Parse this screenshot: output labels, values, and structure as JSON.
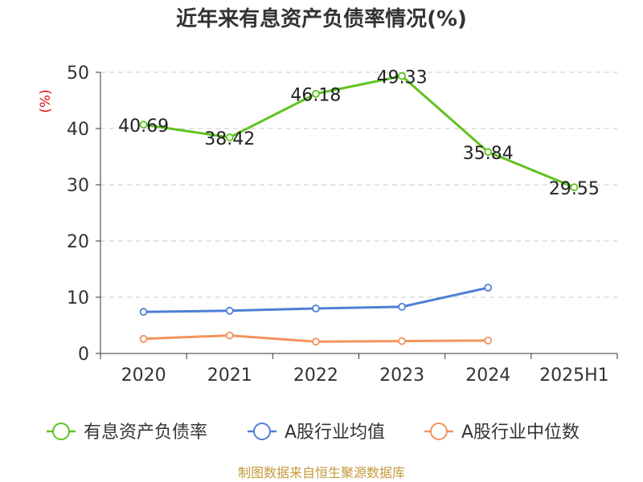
{
  "chart_data": {
    "type": "line",
    "title": "近年来有息资产负债率情况(%)",
    "ylabel": "(%)",
    "xlabel": "",
    "categories": [
      "2020",
      "2021",
      "2022",
      "2023",
      "2024",
      "2025H1"
    ],
    "ylim": [
      0,
      50
    ],
    "yticks": [
      0,
      10,
      20,
      30,
      40,
      50
    ],
    "grid": true,
    "legend_position": "bottom",
    "series": [
      {
        "name": "有息资产负债率",
        "color": "#5fc31f",
        "values": [
          40.69,
          38.42,
          46.18,
          49.33,
          35.84,
          29.55
        ],
        "labels": [
          "40.69",
          "38.42",
          "46.18",
          "49.33",
          "35.84",
          "29.55"
        ]
      },
      {
        "name": "A股行业均值",
        "color": "#4f7fd6",
        "values": [
          7.4,
          7.6,
          8.0,
          8.3,
          11.7,
          null
        ]
      },
      {
        "name": "A股行业中位数",
        "color": "#f4935c",
        "values": [
          2.6,
          3.2,
          2.1,
          2.2,
          2.3,
          null
        ]
      }
    ]
  },
  "source_note": "制图数据来自恒生聚源数据库",
  "colors": {
    "title": "#333333",
    "ylabel": "#e01010",
    "axis": "#333333",
    "grid": "#c8c8c8",
    "source_note": "#c49a3a"
  }
}
